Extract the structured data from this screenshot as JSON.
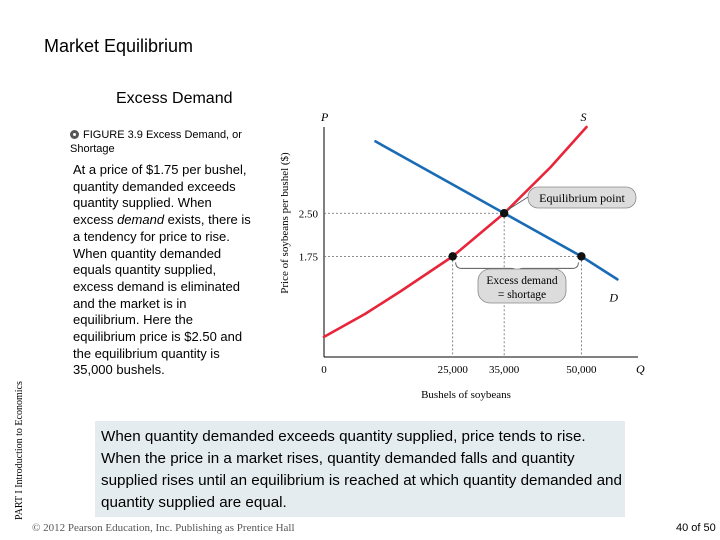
{
  "slide": {
    "title": "Market Equilibrium",
    "subtitle": "Excess Demand",
    "part_label": "PART I Introduction to Economics",
    "figure_caption_number": "FIGURE 3.9",
    "figure_caption_title": "Excess Demand, or Shortage",
    "caption_body_1": "At a price of $1.75 per bushel, quantity demanded exceeds quantity supplied. When excess ",
    "caption_body_italic": "demand",
    "caption_body_2": " exists, there is a tendency for price to rise. When quantity demanded equals quantity supplied, excess demand is eliminated and the market is in equilibrium. Here the equilibrium price is $2.50 and the equilibrium quantity is 35,000 bushels.",
    "summary": "When quantity demanded exceeds quantity supplied, price tends to rise. When the price in a market rises, quantity demanded falls and quantity supplied rises until an equilibrium is reached at which quantity demanded and quantity supplied are equal.",
    "copyright": "© 2012 Pearson Education, Inc. Publishing as Prentice Hall",
    "page_number": "40 of 50"
  },
  "chart_data": {
    "type": "line",
    "y_axis_label": "Price of soybeans per bushel ($)",
    "x_axis_label": "Bushels of soybeans",
    "y_axis_letter": "P",
    "x_axis_letter": "Q",
    "origin_label": "0",
    "x_ticks": [
      {
        "value": 25000,
        "label": "25,000"
      },
      {
        "value": 35000,
        "label": "35,000"
      },
      {
        "value": 50000,
        "label": "50,000"
      }
    ],
    "y_ticks": [
      {
        "value": 1.75,
        "label": "1.75"
      },
      {
        "value": 2.5,
        "label": "2.50"
      }
    ],
    "xlim": [
      0,
      61000
    ],
    "ylim": [
      0,
      4.0
    ],
    "series": [
      {
        "name": "S",
        "color": "#e8253a",
        "points": [
          [
            0,
            0.35
          ],
          [
            8000,
            0.75
          ],
          [
            15000,
            1.15
          ],
          [
            25000,
            1.75
          ],
          [
            35000,
            2.5
          ],
          [
            44000,
            3.3
          ],
          [
            51000,
            4.0
          ]
        ]
      },
      {
        "name": "D",
        "color": "#1a6bb5",
        "points": [
          [
            0,
            4.3
          ],
          [
            10000,
            3.75
          ],
          [
            25000,
            3.0
          ],
          [
            35000,
            2.5
          ],
          [
            50000,
            1.75
          ],
          [
            57000,
            1.35
          ]
        ]
      }
    ],
    "points": [
      {
        "x": 35000,
        "y": 2.5,
        "kind": "equilibrium"
      },
      {
        "x": 25000,
        "y": 1.75,
        "kind": "supply"
      },
      {
        "x": 50000,
        "y": 1.75,
        "kind": "demand"
      }
    ],
    "annotations": [
      {
        "text": "Equilibrium point"
      },
      {
        "text_line1": "Excess demand",
        "text_line2": "= shortage"
      }
    ],
    "colors": {
      "supply": "#e8253a",
      "demand": "#1a6bb5",
      "callout_fill": "#dcdcdc"
    }
  }
}
